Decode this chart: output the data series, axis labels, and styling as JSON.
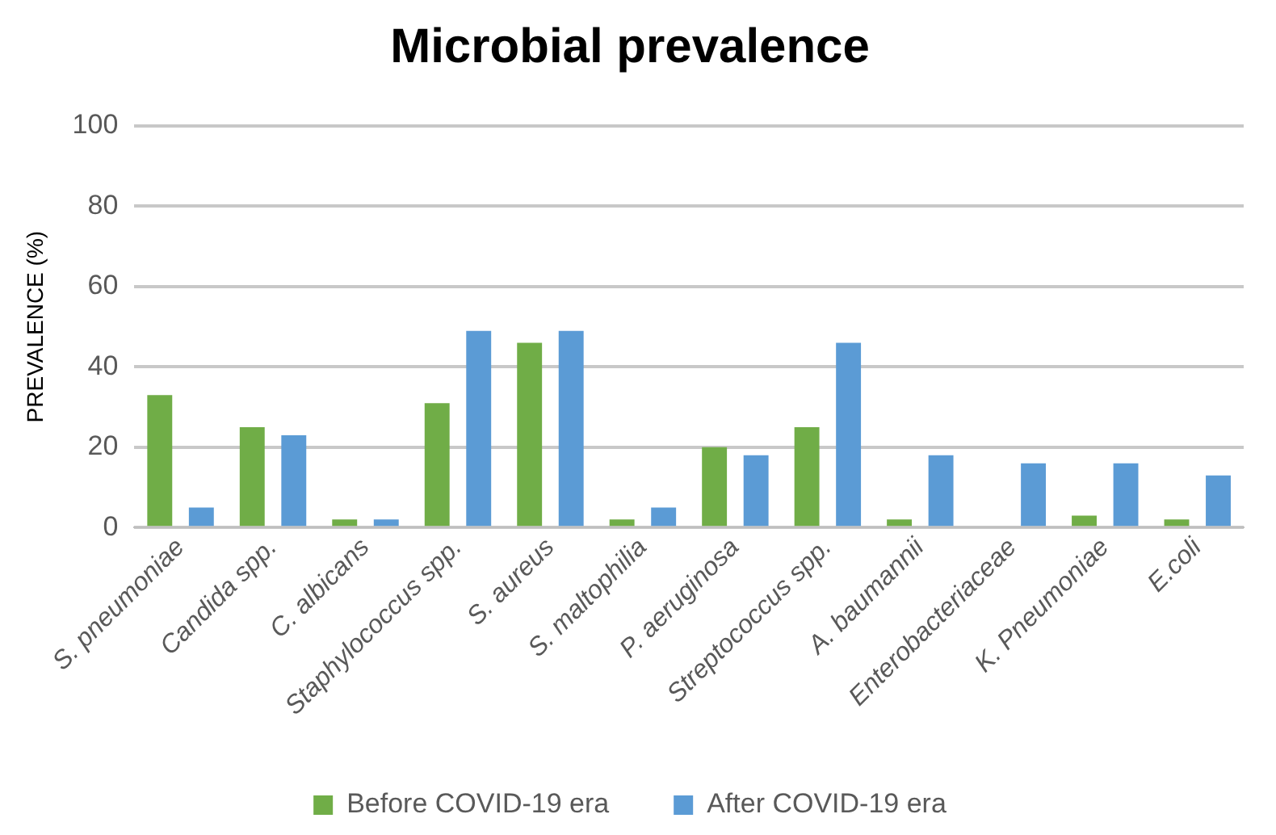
{
  "chart_data": {
    "type": "bar",
    "title": "Microbial prevalence",
    "ylabel": "PREVALENCE (%)",
    "categories": [
      "S. pneumoniae",
      "Candida spp.",
      "C. albicans",
      "Staphylococcus spp.",
      "S. aureus",
      "S. maltophilia",
      "P. aeruginosa",
      "Streptococcus spp.",
      "A. baumannii",
      "Enterobacteriaceae",
      "K. Pneumoniae",
      "E.coli"
    ],
    "series": [
      {
        "name": "Before COVID-19 era",
        "color": "#70ad47",
        "values": [
          33,
          25,
          2,
          31,
          46,
          2,
          20,
          25,
          2,
          0,
          3,
          2
        ]
      },
      {
        "name": "After COVID-19 era",
        "color": "#5b9bd5",
        "values": [
          5,
          23,
          2,
          49,
          49,
          5,
          18,
          46,
          18,
          16,
          16,
          13
        ]
      }
    ],
    "ylim": [
      0,
      100
    ],
    "yticks": [
      0,
      20,
      40,
      60,
      80,
      100
    ],
    "grid": "y",
    "legend": "bottom"
  }
}
